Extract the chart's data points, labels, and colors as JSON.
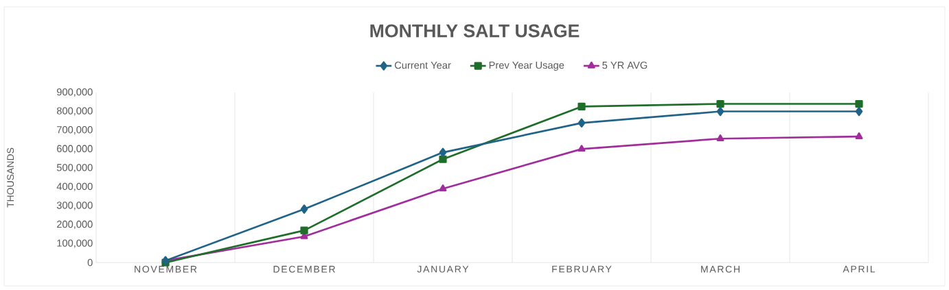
{
  "chart_data": {
    "type": "line",
    "title": "MONTHLY SALT USAGE",
    "ylabel": "THOUSANDS",
    "categories": [
      "NOVEMBER",
      "DECEMBER",
      "JANUARY",
      "FEBRUARY",
      "MARCH",
      "APRIL"
    ],
    "series": [
      {
        "name": "Current Year",
        "color": "#1f6388",
        "marker": "diamond",
        "values": [
          10000,
          283000,
          583000,
          739000,
          800000,
          800000
        ]
      },
      {
        "name": "Prev Year Usage",
        "color": "#1e6e2a",
        "marker": "square",
        "values": [
          0,
          170000,
          547000,
          826000,
          840000,
          840000
        ]
      },
      {
        "name": "5 YR AVG",
        "color": "#a12d9c",
        "marker": "triangle",
        "values": [
          10000,
          138000,
          391000,
          601000,
          656000,
          667000
        ]
      }
    ],
    "ylim": [
      0,
      900000
    ],
    "yticks": [
      {
        "value": 0,
        "label": "0"
      },
      {
        "value": 100000,
        "label": "100,000"
      },
      {
        "value": 200000,
        "label": "200,000"
      },
      {
        "value": 300000,
        "label": "300,000"
      },
      {
        "value": 400000,
        "label": "400,000"
      },
      {
        "value": 500000,
        "label": "500,000"
      },
      {
        "value": 600000,
        "label": "600,000"
      },
      {
        "value": 700000,
        "label": "700,000"
      },
      {
        "value": 800000,
        "label": "800,000"
      },
      {
        "value": 900000,
        "label": "900,000"
      }
    ],
    "grid": "x",
    "legend": "top",
    "line_style": "solid"
  }
}
